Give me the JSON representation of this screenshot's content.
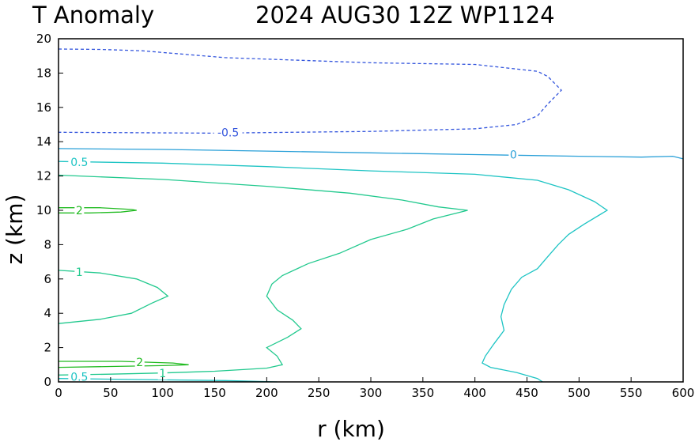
{
  "chart_data": {
    "type": "contour",
    "title_left": "T Anomaly",
    "title_right": "2024 AUG30 12Z   WP1124",
    "xlabel": "r (km)",
    "ylabel": "z (km)",
    "xlim": [
      0,
      600
    ],
    "ylim": [
      0,
      20
    ],
    "xticks": [
      "0",
      "50",
      "100",
      "150",
      "200",
      "250",
      "300",
      "350",
      "400",
      "450",
      "500",
      "550",
      "600"
    ],
    "yticks": [
      "0",
      "2",
      "4",
      "6",
      "8",
      "10",
      "12",
      "14",
      "16",
      "18",
      "20"
    ],
    "grid": false,
    "legend": "none",
    "contours": [
      {
        "level": "-0.5",
        "color": "#3355dd",
        "dashed": true,
        "paths": [
          [
            [
              0,
              19.4
            ],
            [
              40,
              19.38
            ],
            [
              80,
              19.3
            ],
            [
              160,
              18.9
            ],
            [
              300,
              18.6
            ],
            [
              400,
              18.5
            ],
            [
              460,
              18.1
            ],
            [
              470,
              17.8
            ],
            [
              483,
              17.0
            ],
            [
              470,
              16.2
            ],
            [
              460,
              15.5
            ],
            [
              440,
              15.0
            ],
            [
              400,
              14.75
            ],
            [
              300,
              14.6
            ],
            [
              150,
              14.5
            ],
            [
              0,
              14.55
            ]
          ]
        ]
      },
      {
        "level": "0",
        "color": "#2aa0d8",
        "dashed": false,
        "paths": [
          [
            [
              0,
              13.6
            ],
            [
              100,
              13.55
            ],
            [
              200,
              13.45
            ],
            [
              300,
              13.35
            ],
            [
              400,
              13.25
            ],
            [
              500,
              13.15
            ],
            [
              560,
              13.1
            ],
            [
              590,
              13.15
            ],
            [
              600,
              13.0
            ]
          ]
        ]
      },
      {
        "level": "0.5",
        "color": "#1ec4c4",
        "dashed": false,
        "paths": [
          [
            [
              0,
              12.85
            ],
            [
              100,
              12.75
            ],
            [
              200,
              12.55
            ],
            [
              300,
              12.3
            ],
            [
              400,
              12.1
            ],
            [
              460,
              11.75
            ],
            [
              490,
              11.2
            ],
            [
              515,
              10.5
            ],
            [
              527,
              10.0
            ],
            [
              505,
              9.2
            ],
            [
              490,
              8.6
            ],
            [
              480,
              8.0
            ],
            [
              470,
              7.3
            ],
            [
              460,
              6.6
            ],
            [
              445,
              6.1
            ],
            [
              435,
              5.4
            ],
            [
              428,
              4.5
            ],
            [
              425,
              3.8
            ],
            [
              428,
              3.0
            ],
            [
              418,
              2.2
            ],
            [
              410,
              1.5
            ],
            [
              407,
              1.1
            ],
            [
              415,
              0.85
            ],
            [
              440,
              0.55
            ],
            [
              460,
              0.2
            ],
            [
              465,
              0.0
            ]
          ],
          [
            [
              0,
              0.2
            ],
            [
              100,
              0.12
            ],
            [
              160,
              0.08
            ],
            [
              210,
              0.0
            ]
          ]
        ]
      },
      {
        "level": "1",
        "color": "#22c98e",
        "dashed": false,
        "paths": [
          [
            [
              0,
              12.05
            ],
            [
              100,
              11.8
            ],
            [
              200,
              11.4
            ],
            [
              280,
              11.0
            ],
            [
              330,
              10.6
            ],
            [
              365,
              10.2
            ],
            [
              393,
              10.0
            ],
            [
              360,
              9.5
            ],
            [
              335,
              8.9
            ],
            [
              300,
              8.3
            ],
            [
              270,
              7.5
            ],
            [
              240,
              6.9
            ],
            [
              215,
              6.2
            ],
            [
              205,
              5.7
            ],
            [
              200,
              5.0
            ],
            [
              210,
              4.2
            ],
            [
              225,
              3.6
            ],
            [
              233,
              3.1
            ],
            [
              220,
              2.6
            ],
            [
              200,
              2.0
            ],
            [
              210,
              1.5
            ],
            [
              215,
              1.0
            ],
            [
              200,
              0.8
            ],
            [
              150,
              0.62
            ],
            [
              100,
              0.52
            ],
            [
              50,
              0.45
            ],
            [
              0,
              0.4
            ]
          ],
          [
            [
              0,
              6.5
            ],
            [
              40,
              6.35
            ],
            [
              75,
              6.0
            ],
            [
              95,
              5.5
            ],
            [
              105,
              5.0
            ],
            [
              90,
              4.6
            ],
            [
              70,
              4.0
            ],
            [
              40,
              3.65
            ],
            [
              0,
              3.4
            ]
          ]
        ]
      },
      {
        "level": "2",
        "color": "#22bb22",
        "dashed": false,
        "paths": [
          [
            [
              0,
              10.15
            ],
            [
              40,
              10.15
            ],
            [
              70,
              10.05
            ],
            [
              75,
              10.0
            ],
            [
              60,
              9.9
            ],
            [
              30,
              9.85
            ],
            [
              0,
              9.85
            ]
          ],
          [
            [
              0,
              1.2
            ],
            [
              60,
              1.2
            ],
            [
              110,
              1.1
            ],
            [
              125,
              1.0
            ],
            [
              100,
              0.95
            ],
            [
              50,
              0.9
            ],
            [
              0,
              0.85
            ]
          ]
        ]
      }
    ],
    "labels": [
      {
        "text": "-0.5",
        "color": "#3355dd",
        "x": 163,
        "y": 14.55
      },
      {
        "text": "0",
        "color": "#2aa0d8",
        "x": 437,
        "y": 13.25
      },
      {
        "text": "0.5",
        "color": "#1ec4c4",
        "x": 20,
        "y": 12.8
      },
      {
        "text": "2",
        "color": "#22bb22",
        "x": 20,
        "y": 10.0
      },
      {
        "text": "1",
        "color": "#22c98e",
        "x": 20,
        "y": 6.4
      },
      {
        "text": "2",
        "color": "#22bb22",
        "x": 78,
        "y": 1.15
      },
      {
        "text": "1",
        "color": "#22c98e",
        "x": 100,
        "y": 0.5
      },
      {
        "text": "0.5",
        "color": "#1ec4c4",
        "x": 20,
        "y": 0.3
      }
    ]
  }
}
